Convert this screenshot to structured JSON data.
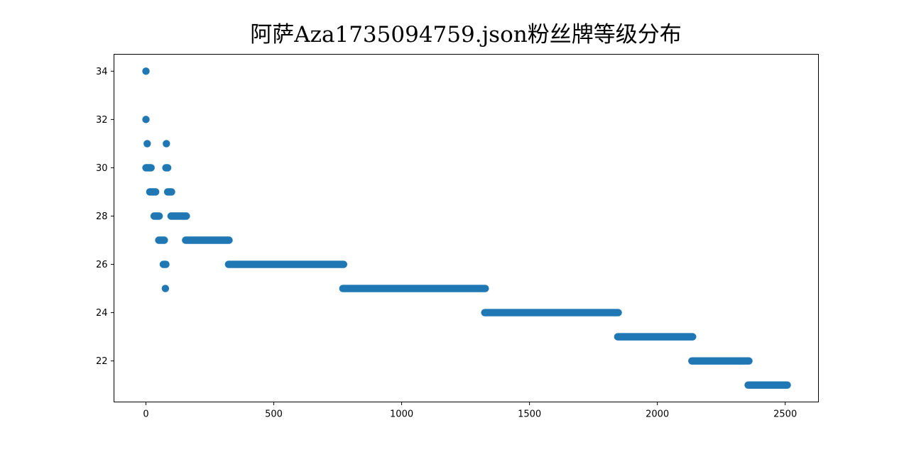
{
  "chart_data": {
    "type": "scatter",
    "title": "阿萨Aza1735094759.json粉丝牌等级分布",
    "xlabel": "",
    "ylabel": "",
    "xlim": [
      -125,
      2630
    ],
    "ylim": [
      20.3,
      34.7
    ],
    "xticks": [
      0,
      500,
      1000,
      1500,
      2000,
      2500
    ],
    "yticks": [
      22,
      24,
      26,
      28,
      30,
      32,
      34
    ],
    "grid": false,
    "marker_color": "#1f77b4",
    "segments": [
      {
        "level": 34,
        "x_start": 0,
        "x_end": 0
      },
      {
        "level": 32,
        "x_start": 0,
        "x_end": 0
      },
      {
        "level": 31,
        "x_start": 5,
        "x_end": 5
      },
      {
        "level": 31,
        "x_start": 80,
        "x_end": 80
      },
      {
        "level": 30,
        "x_start": 0,
        "x_end": 20
      },
      {
        "level": 30,
        "x_start": 78,
        "x_end": 85
      },
      {
        "level": 29,
        "x_start": 15,
        "x_end": 38
      },
      {
        "level": 29,
        "x_start": 85,
        "x_end": 100
      },
      {
        "level": 28,
        "x_start": 32,
        "x_end": 52
      },
      {
        "level": 28,
        "x_start": 98,
        "x_end": 158
      },
      {
        "level": 27,
        "x_start": 50,
        "x_end": 72
      },
      {
        "level": 27,
        "x_start": 155,
        "x_end": 325
      },
      {
        "level": 26,
        "x_start": 68,
        "x_end": 78
      },
      {
        "level": 26,
        "x_start": 323,
        "x_end": 773
      },
      {
        "level": 25,
        "x_start": 76,
        "x_end": 76
      },
      {
        "level": 25,
        "x_start": 770,
        "x_end": 1327
      },
      {
        "level": 24,
        "x_start": 1325,
        "x_end": 1847
      },
      {
        "level": 23,
        "x_start": 1845,
        "x_end": 2138
      },
      {
        "level": 22,
        "x_start": 2135,
        "x_end": 2358
      },
      {
        "level": 21,
        "x_start": 2355,
        "x_end": 2508
      }
    ]
  }
}
